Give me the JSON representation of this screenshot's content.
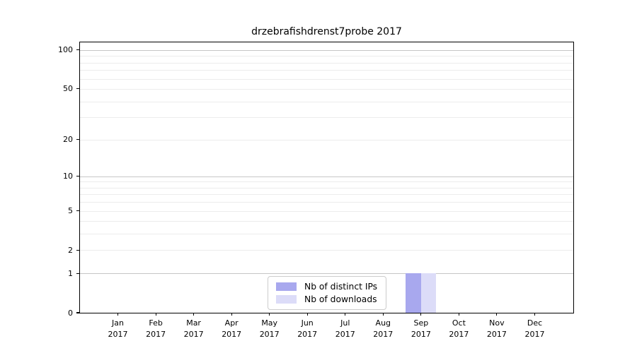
{
  "title": "drzebrafishdrenst7probe 2017",
  "chart_data": {
    "type": "bar",
    "title": "drzebrafishdrenst7probe 2017",
    "xlabel": "",
    "ylabel": "",
    "categories": [
      "Jan",
      "Feb",
      "Mar",
      "Apr",
      "May",
      "Jun",
      "Jul",
      "Aug",
      "Sep",
      "Oct",
      "Nov",
      "Dec"
    ],
    "xtick_year": "2017",
    "series": [
      {
        "name": "Nb of distinct IPs",
        "color": "#a8a8ee",
        "values": [
          0,
          0,
          0,
          0,
          0,
          0,
          0,
          0,
          1,
          0,
          0,
          0
        ]
      },
      {
        "name": "Nb of downloads",
        "color": "#dcdcf8",
        "values": [
          0,
          0,
          0,
          0,
          0,
          0,
          0,
          0,
          1,
          0,
          0,
          0
        ]
      }
    ],
    "yscale": "log1p",
    "ylim": [
      0,
      115
    ],
    "ytick_values": [
      0,
      1,
      2,
      5,
      10,
      20,
      50,
      100
    ],
    "ytick_labels": [
      "0",
      "1",
      "2",
      "5",
      "10",
      "20",
      "50",
      "100"
    ],
    "grid": true,
    "major_grid_values": [
      1,
      10,
      100
    ],
    "minor_grid_values": [
      2,
      3,
      4,
      5,
      6,
      7,
      8,
      9,
      20,
      30,
      40,
      50,
      60,
      70,
      80,
      90
    ],
    "legend_position": "lower center"
  },
  "legend": {
    "items": [
      {
        "label": "Nb of distinct IPs",
        "color": "#a8a8ee"
      },
      {
        "label": "Nb of downloads",
        "color": "#dcdcf8"
      }
    ]
  }
}
